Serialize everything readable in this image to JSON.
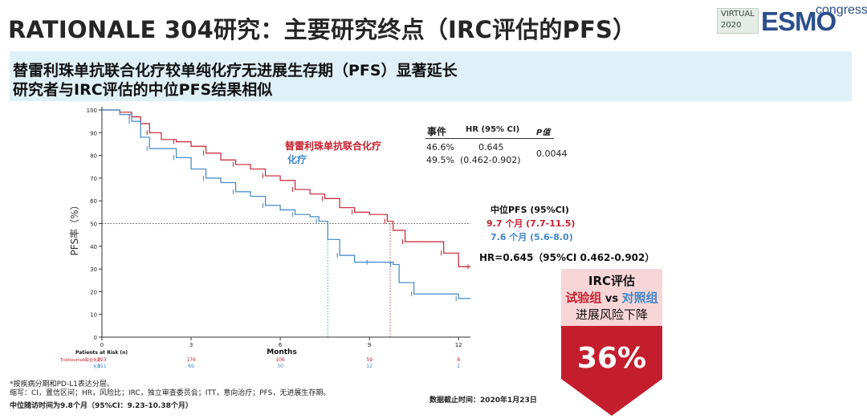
{
  "header": {
    "title": "RATIONALE 304研究：主要研究终点（IRC评估的PFS）",
    "logo": {
      "line1": "VIRTUAL",
      "line2": "2020",
      "brand": "ESMO",
      "suffix": "congress"
    }
  },
  "banner": {
    "line1": "替雷利珠单抗联合化疗较单纯化疗无进展生存期（PFS）显著延长",
    "line2": "研究者与IRC评估的中位PFS结果相似"
  },
  "colors": {
    "treatment": "#c8202f",
    "control": "#3f86c8",
    "accent": "#c8202f",
    "banner_bg": "#dff0f8"
  },
  "chart_data": {
    "type": "line",
    "xlabel": "Months",
    "ylabel": "PFS率（%）",
    "xlim": [
      0,
      12.4
    ],
    "ylim": [
      0,
      100
    ],
    "xticks": [
      0,
      3,
      6,
      9,
      12
    ],
    "yticks": [
      0,
      10,
      20,
      30,
      40,
      50,
      60,
      70,
      80,
      90,
      100
    ],
    "reference_line_y": 50,
    "series": [
      {
        "name": "替雷利珠单抗联合化疗",
        "color": "#c8202f",
        "x": [
          0,
          0.6,
          1.0,
          1.3,
          1.6,
          2.0,
          2.5,
          3.0,
          3.5,
          4.0,
          4.5,
          5.0,
          5.5,
          6.0,
          6.5,
          7.0,
          7.5,
          8.0,
          8.5,
          9.0,
          9.6,
          9.8,
          10.2,
          11.0,
          11.5,
          12.0,
          12.4
        ],
        "y": [
          100,
          99,
          97,
          94,
          90,
          87,
          86,
          84,
          81,
          78,
          76,
          74,
          71,
          69,
          65,
          63,
          61,
          57,
          55,
          54,
          51,
          47,
          42,
          42,
          37,
          31,
          31
        ]
      },
      {
        "name": "化疗",
        "color": "#3f86c8",
        "x": [
          0,
          0.6,
          1.0,
          1.3,
          1.6,
          2.0,
          2.5,
          3.0,
          3.5,
          4.0,
          4.5,
          5.0,
          5.5,
          6.0,
          6.5,
          7.0,
          7.3,
          7.6,
          8.0,
          8.5,
          9.0,
          9.2,
          9.8,
          10.0,
          10.5,
          11.5,
          12.0,
          12.4
        ],
        "y": [
          100,
          98,
          95,
          88,
          83,
          83,
          79,
          74,
          70,
          68,
          64,
          62,
          58,
          56,
          54,
          53,
          51,
          43,
          36,
          33,
          33,
          33,
          32,
          24,
          19,
          19,
          17,
          17
        ]
      }
    ],
    "at_risk": {
      "title": "Patients at Risk (n)",
      "rows": [
        {
          "label": "Tislelizumab联合化疗",
          "values": [
            "223",
            "176",
            "106",
            "59",
            "8"
          ]
        },
        {
          "label": "化疗",
          "values": [
            "111",
            "69",
            "30",
            "12",
            "2"
          ]
        }
      ]
    },
    "medians": [
      {
        "series": "替雷利珠单抗联合化疗",
        "month": 9.7
      },
      {
        "series": "化疗",
        "month": 7.6
      }
    ],
    "legend": {
      "treatment": "替雷利珠单抗联合化疗",
      "control": "化疗"
    }
  },
  "stats_table": {
    "col_events": "事件",
    "col_hr": "HR (95% CI)",
    "col_p": "P值",
    "events_treatment": "46.6%",
    "events_control": "49.5%",
    "hr": "0.645",
    "ci": "(0.462-0.902)",
    "p": "0.0044"
  },
  "median_pfs": {
    "title": "中位PFS (95%CI)",
    "treatment": "9.7 个月 (7.7-11.5)",
    "control": "7.6 个月 (5.6-8.0)"
  },
  "hr_text": "HR=0.645（95%CI 0.462-0.902）",
  "irc": {
    "title": "IRC评估",
    "exp_group": "试验组",
    "vs": " vs ",
    "ctrl_group": "对照组",
    "subtitle": "进展风险下降",
    "percent": "36%"
  },
  "footnotes": {
    "line1": "*按疾病分期和PD-L1表达分层。",
    "line2": "缩写：CI，置信区间；HR，风险比；IRC，独立审查委员会；ITT，意向治疗；PFS，无进展生存期。",
    "followup": "中位随访时间为9.8个月（95%CI：9.23-10.38个月）",
    "cutoff": "数据截止时间：2020年1月23日"
  }
}
